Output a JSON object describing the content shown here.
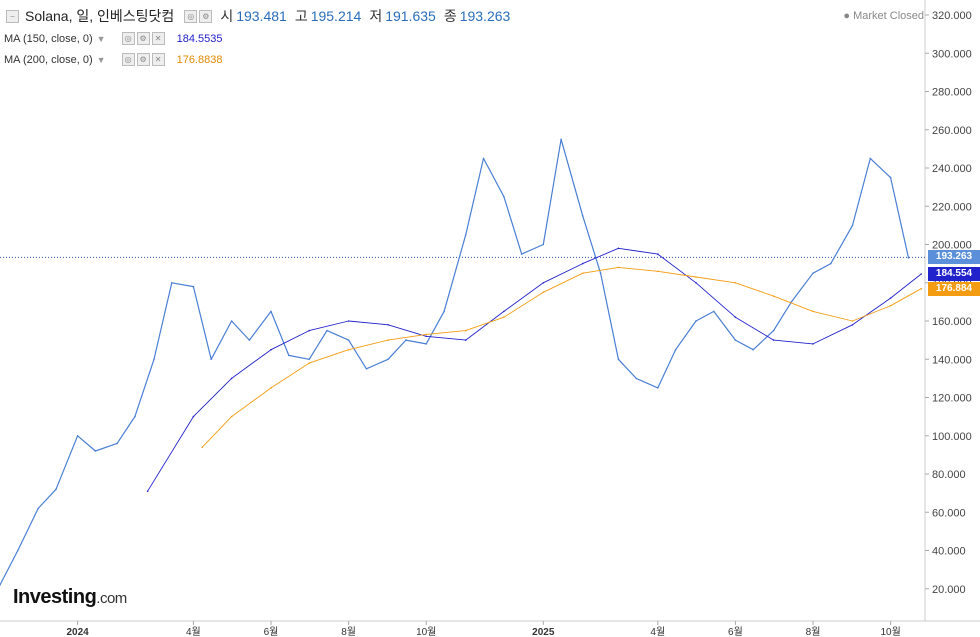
{
  "header": {
    "collapse_icon": "minus-box-icon",
    "title": "Solana, 일, 인베스팅닷컴",
    "open_label": "시",
    "open_value": "193.481",
    "high_label": "고",
    "high_value": "195.214",
    "low_label": "저",
    "low_value": "191.635",
    "close_label": "종",
    "close_value": "193.263"
  },
  "indicators": [
    {
      "label": "MA (150, close, 0)",
      "value": "184.5535",
      "color": "#2222cc"
    },
    {
      "label": "MA (200, close, 0)",
      "value": "176.8838",
      "color": "#f39c12"
    }
  ],
  "market_status": "Market Closed",
  "logo": {
    "main": "Investing",
    "suffix": ".com"
  },
  "price_tags": {
    "last": "193.263",
    "ma150": "184.554",
    "ma200": "176.884"
  },
  "colors": {
    "price": "#4a7fd4",
    "ma150": "#2222cc",
    "ma200": "#f39c12",
    "last_tag": "#5b8fd9"
  },
  "chart_data": {
    "type": "line",
    "y_axis_ticks": [
      "20.000",
      "40.000",
      "60.000",
      "80.000",
      "100.000",
      "120.000",
      "140.000",
      "160.000",
      "180.000",
      "200.000",
      "220.000",
      "240.000",
      "260.000",
      "280.000",
      "300.000",
      "320.000"
    ],
    "ylim": [
      0,
      327
    ],
    "x_axis_ticks": [
      "2024",
      "4월",
      "6월",
      "8월",
      "10월",
      "2025",
      "4월",
      "6월",
      "8월",
      "10월"
    ],
    "last_price": 193.263,
    "series": [
      {
        "name": "Solana",
        "x": [
          "2023-11",
          "2023-11-15",
          "2023-12",
          "2023-12-15",
          "2024-01",
          "2024-01-15",
          "2024-02",
          "2024-02-15",
          "2024-03",
          "2024-03-15",
          "2024-04",
          "2024-04-15",
          "2024-05",
          "2024-05-15",
          "2024-06",
          "2024-06-15",
          "2024-07",
          "2024-07-15",
          "2024-08",
          "2024-08-15",
          "2024-09",
          "2024-09-15",
          "2024-10",
          "2024-10-15",
          "2024-11",
          "2024-11-15",
          "2024-12",
          "2024-12-15",
          "2025-01",
          "2025-01-15",
          "2025-02",
          "2025-02-15",
          "2025-03",
          "2025-03-15",
          "2025-04",
          "2025-04-15",
          "2025-05",
          "2025-05-15",
          "2025-06",
          "2025-06-15",
          "2025-07",
          "2025-07-15",
          "2025-08",
          "2025-08-15",
          "2025-09",
          "2025-09-15",
          "2025-10",
          "2025-10-15"
        ],
        "values": [
          22,
          40,
          62,
          72,
          100,
          92,
          96,
          110,
          140,
          180,
          178,
          140,
          160,
          150,
          165,
          142,
          140,
          155,
          150,
          135,
          140,
          150,
          148,
          165,
          205,
          245,
          225,
          195,
          200,
          255,
          215,
          185,
          140,
          130,
          125,
          145,
          160,
          165,
          150,
          145,
          155,
          170,
          185,
          190,
          210,
          245,
          235,
          193
        ]
      },
      {
        "name": "MA (150, close, 0)",
        "x": [
          "2024-02-25",
          "2024-04-01",
          "2024-05-01",
          "2024-06-01",
          "2024-07-01",
          "2024-08-01",
          "2024-09-01",
          "2024-10-01",
          "2024-11-01",
          "2024-12-01",
          "2025-01-01",
          "2025-02-01",
          "2025-03-01",
          "2025-04-01",
          "2025-05-01",
          "2025-06-01",
          "2025-07-01",
          "2025-08-01",
          "2025-09-01",
          "2025-10-01",
          "2025-10-25"
        ],
        "values": [
          71,
          110,
          130,
          145,
          155,
          160,
          158,
          152,
          150,
          165,
          180,
          190,
          198,
          195,
          180,
          162,
          150,
          148,
          158,
          172,
          184.55
        ]
      },
      {
        "name": "MA (200, close, 0)",
        "x": [
          "2024-04-08",
          "2024-05-01",
          "2024-06-01",
          "2024-07-01",
          "2024-08-01",
          "2024-09-01",
          "2024-10-01",
          "2024-11-01",
          "2024-12-01",
          "2025-01-01",
          "2025-02-01",
          "2025-03-01",
          "2025-04-01",
          "2025-05-01",
          "2025-06-01",
          "2025-07-01",
          "2025-08-01",
          "2025-09-01",
          "2025-10-01",
          "2025-10-25"
        ],
        "values": [
          94,
          110,
          125,
          138,
          145,
          150,
          153,
          155,
          162,
          175,
          185,
          188,
          186,
          183,
          180,
          173,
          165,
          160,
          168,
          176.88
        ]
      }
    ]
  }
}
